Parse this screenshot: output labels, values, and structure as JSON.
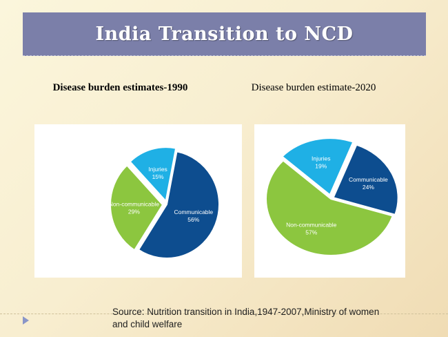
{
  "slide": {
    "title": "India Transition to NCD",
    "source": "Source: Nutrition transition in India,1947-2007,Ministry of women and child welfare"
  },
  "chart_data": [
    {
      "type": "pie",
      "title": "Disease burden estimates-1990",
      "slices": [
        {
          "label": "Communicable",
          "value": 56,
          "display": "56%",
          "color": "#0d4d8f"
        },
        {
          "label": "Non-communicable",
          "value": 29,
          "display": "29%",
          "color": "#8cc63f"
        },
        {
          "label": "Injuries",
          "value": 15,
          "display": "15%",
          "color": "#1fb0e5"
        }
      ]
    },
    {
      "type": "pie",
      "title": "Disease burden estimate-2020",
      "slices": [
        {
          "label": "Communicable",
          "value": 24,
          "display": "24%",
          "color": "#0d4d8f"
        },
        {
          "label": "Non-communicable",
          "value": 57,
          "display": "57%",
          "color": "#8cc63f"
        },
        {
          "label": "Injuries",
          "value": 19,
          "display": "19%",
          "color": "#1fb0e5"
        }
      ]
    }
  ]
}
